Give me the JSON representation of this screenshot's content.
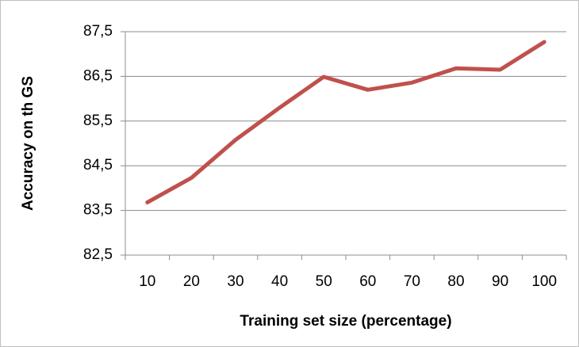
{
  "chart_data": {
    "type": "line",
    "x_label": "Training set size (percentage)",
    "y_label": "Accuracy on th GS",
    "categories": [
      "10",
      "20",
      "30",
      "40",
      "50",
      "60",
      "70",
      "80",
      "90",
      "100"
    ],
    "values": [
      83.68,
      84.23,
      85.08,
      85.8,
      86.49,
      86.2,
      86.36,
      86.68,
      86.65,
      87.27
    ],
    "color": "#c0504d",
    "ylim": [
      82.5,
      87.5
    ],
    "yticks": [
      {
        "value": 82.5,
        "label": "82,5"
      },
      {
        "value": 83.5,
        "label": "83,5"
      },
      {
        "value": 84.5,
        "label": "84,5"
      },
      {
        "value": 85.5,
        "label": "85,5"
      },
      {
        "value": 86.5,
        "label": "86,5"
      },
      {
        "value": 87.5,
        "label": "87,5"
      }
    ],
    "grid": true
  }
}
